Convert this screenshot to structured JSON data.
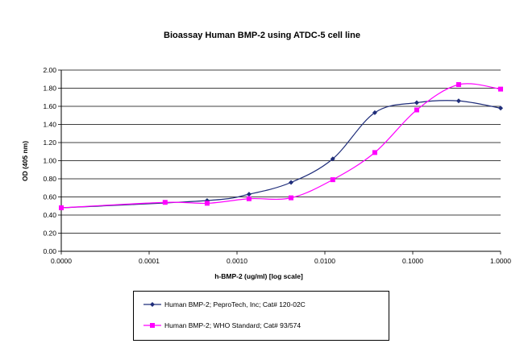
{
  "chart_data": {
    "type": "line",
    "title": "Bioassay Human BMP-2 using ATDC-5 cell line",
    "xlabel": "h-BMP-2 (ug/ml) [log scale]",
    "ylabel": "OD (405 nm)",
    "x_scale": "log",
    "x_ticks": [
      "0.0000",
      "0.0001",
      "0.0010",
      "0.0100",
      "0.1000",
      "1.0000"
    ],
    "x_tick_values": [
      1e-05,
      0.0001,
      0.001,
      0.01,
      0.1,
      1
    ],
    "y_ticks": [
      "0.00",
      "0.20",
      "0.40",
      "0.60",
      "0.80",
      "1.00",
      "1.20",
      "1.40",
      "1.60",
      "1.80",
      "2.00"
    ],
    "ylim": [
      0,
      2
    ],
    "grid": "horizontal",
    "legend_position": "bottom",
    "series": [
      {
        "name": "Human BMP-2; PeproTech, Inc; Cat# 120-02C",
        "color": "#1f2d7a",
        "marker": "diamond",
        "x": [
          1e-05,
          0.000457,
          0.00137,
          0.00412,
          0.0123,
          0.037,
          0.111,
          0.333,
          1.0
        ],
        "y": [
          0.48,
          0.56,
          0.63,
          0.76,
          1.02,
          1.53,
          1.64,
          1.66,
          1.58
        ]
      },
      {
        "name": "Human BMP-2; WHO Standard; Cat# 93/574",
        "color": "#ff00ff",
        "marker": "square",
        "x": [
          1e-05,
          0.000152,
          0.000457,
          0.00137,
          0.00412,
          0.0123,
          0.037,
          0.111,
          0.333,
          1.0
        ],
        "y": [
          0.48,
          0.54,
          0.53,
          0.58,
          0.59,
          0.79,
          1.09,
          1.56,
          1.84,
          1.79
        ]
      }
    ]
  }
}
